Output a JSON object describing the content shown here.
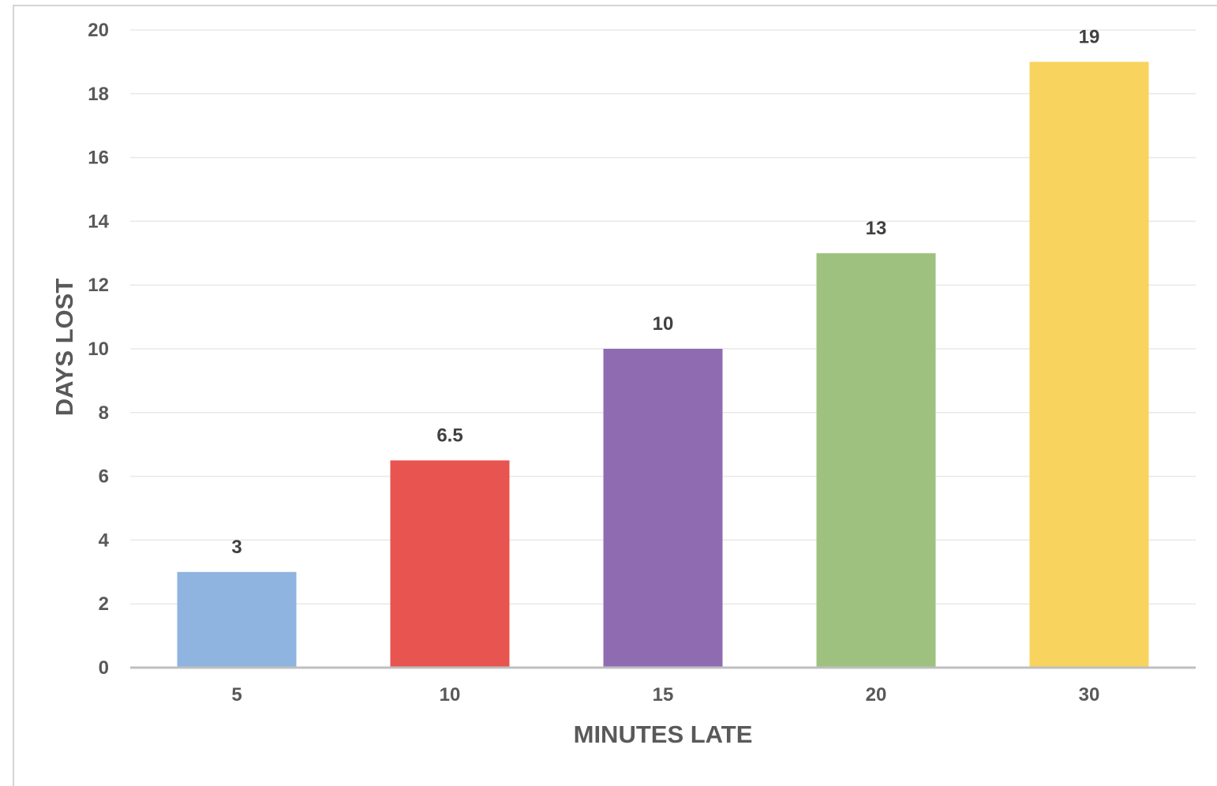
{
  "chart_data": {
    "type": "bar",
    "categories": [
      "5",
      "10",
      "15",
      "20",
      "30"
    ],
    "values": [
      3,
      6.5,
      10,
      13,
      19
    ],
    "data_labels": [
      "3",
      "6.5",
      "10",
      "13",
      "19"
    ],
    "colors": [
      "#8eb4df",
      "#e8544f",
      "#8f6cb2",
      "#9fc17f",
      "#f8d35e"
    ],
    "title": "",
    "xlabel": "MINUTES LATE",
    "ylabel": "DAYS LOST",
    "ylim": [
      0,
      20
    ],
    "yticks": [
      0,
      2,
      4,
      6,
      8,
      10,
      12,
      14,
      16,
      18,
      20
    ],
    "grid": true,
    "legend": "none"
  }
}
